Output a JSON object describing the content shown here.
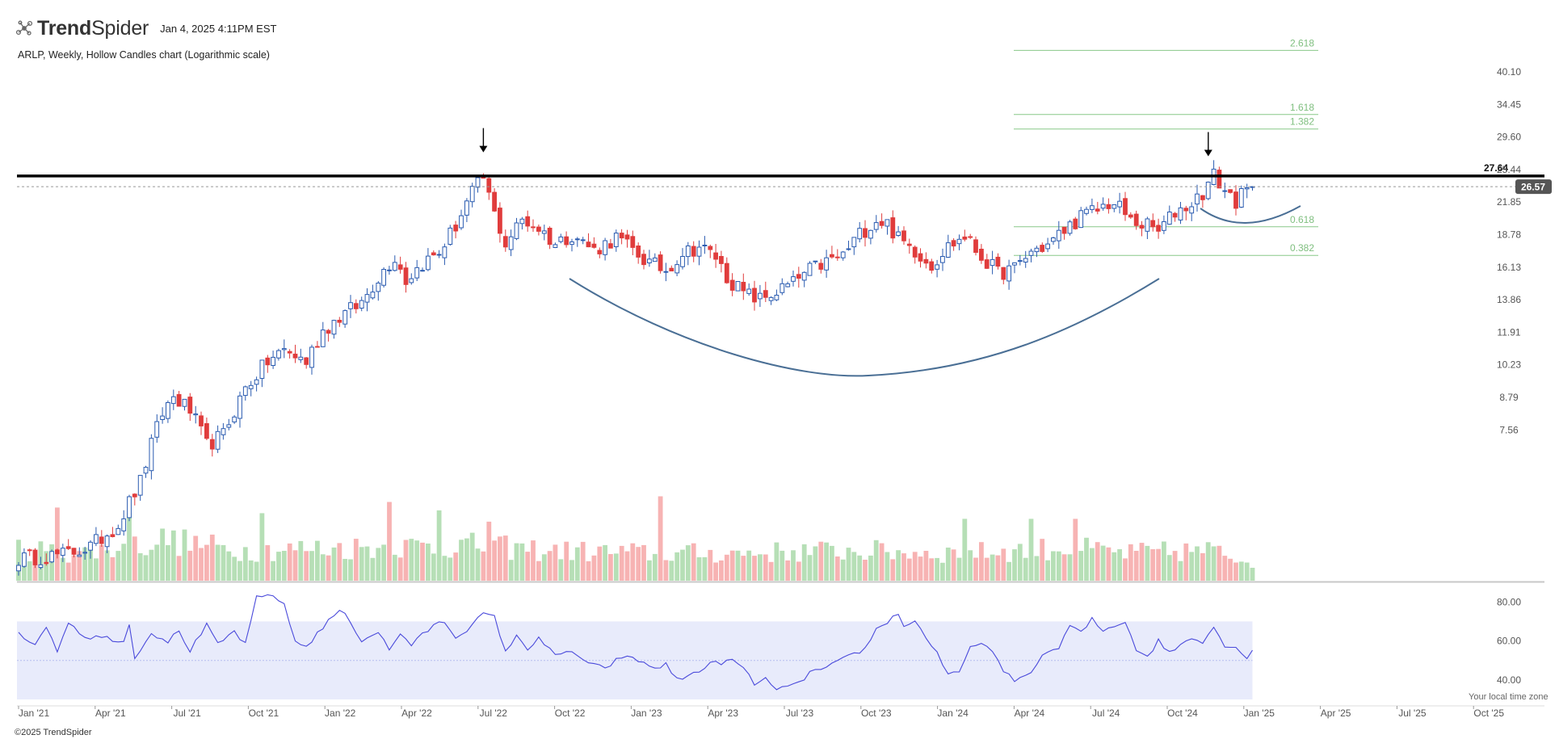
{
  "header": {
    "logo_bold": "Trend",
    "logo_regular": "Spider",
    "timestamp": "Jan 4, 2025 4:11PM EST",
    "logo_icon": "network-nodes-icon"
  },
  "footer": {
    "copyright": "©2025 TrendSpider",
    "timezone": "Your local time zone"
  },
  "colors": {
    "up": "#2a5bb0",
    "down": "#e03c3c",
    "vol_up": "#b6dfb6",
    "vol_down": "#f7b3b3",
    "rsi_line": "#4a4adb",
    "rsi_band": "#e8ebfb",
    "fib": "#88c888",
    "cup": "#4a6f95"
  },
  "chart_data": {
    "type": "candlestick",
    "title": "ARLP, Weekly, Hollow Candles chart (Logarithmic scale)",
    "scale": "log",
    "y_ticks": [
      "40.10",
      "34.45",
      "29.60",
      "25.44",
      "21.85",
      "18.78",
      "16.13",
      "13.86",
      "11.91",
      "10.23",
      "8.79",
      "7.56"
    ],
    "x_ticks": [
      "Jan '21",
      "Apr '21",
      "Jul '21",
      "Oct '21",
      "Jan '22",
      "Apr '22",
      "Jul '22",
      "Oct '22",
      "Jan '23",
      "Apr '23",
      "Jul '23",
      "Oct '23",
      "Jan '24",
      "Apr '24",
      "Jul '24",
      "Oct '24",
      "Jan '25",
      "Apr '25",
      "Jul '25",
      "Oct '25"
    ],
    "start_date": "2021-01-01",
    "resistance": {
      "value": 27.64,
      "label": "27.64"
    },
    "last_price": {
      "value": 26.57,
      "label": "26.57"
    },
    "fib_levels": [
      {
        "label": "2.618",
        "value": 44.0
      },
      {
        "label": "1.618",
        "value": 34.7
      },
      {
        "label": "1.382",
        "value": 32.9
      },
      {
        "label": "0.618",
        "value": 22.9
      },
      {
        "label": "0.382",
        "value": 20.6
      }
    ],
    "close_anchors": [
      [
        0,
        6.7
      ],
      [
        8,
        6.8
      ],
      [
        13,
        7.0
      ],
      [
        18,
        7.6
      ],
      [
        22,
        8.9
      ],
      [
        26,
        11.5
      ],
      [
        28,
        12.2
      ],
      [
        31,
        11.6
      ],
      [
        34,
        10.2
      ],
      [
        37,
        10.6
      ],
      [
        41,
        12.6
      ],
      [
        45,
        13.9
      ],
      [
        48,
        14.5
      ],
      [
        52,
        13.9
      ],
      [
        55,
        15.6
      ],
      [
        58,
        16.4
      ],
      [
        62,
        17.3
      ],
      [
        65,
        19.0
      ],
      [
        68,
        20.5
      ],
      [
        70,
        18.8
      ],
      [
        73,
        20.0
      ],
      [
        76,
        20.8
      ],
      [
        79,
        23.0
      ],
      [
        82,
        26.0
      ],
      [
        84,
        27.4
      ],
      [
        86,
        24.0
      ],
      [
        88,
        21.5
      ],
      [
        91,
        23.5
      ],
      [
        94,
        22.8
      ],
      [
        97,
        21.5
      ],
      [
        100,
        22.3
      ],
      [
        104,
        21.0
      ],
      [
        108,
        22.0
      ],
      [
        111,
        21.0
      ],
      [
        114,
        20.0
      ],
      [
        117,
        19.5
      ],
      [
        120,
        20.8
      ],
      [
        123,
        21.3
      ],
      [
        126,
        20.5
      ],
      [
        128,
        19.0
      ],
      [
        131,
        17.9
      ],
      [
        134,
        17.5
      ],
      [
        137,
        18.0
      ],
      [
        140,
        18.6
      ],
      [
        143,
        19.5
      ],
      [
        146,
        20.1
      ],
      [
        149,
        20.6
      ],
      [
        152,
        22.3
      ],
      [
        155,
        23.5
      ],
      [
        157,
        23.2
      ],
      [
        159,
        21.9
      ],
      [
        162,
        21.0
      ],
      [
        165,
        19.9
      ],
      [
        168,
        21.3
      ],
      [
        171,
        22.1
      ],
      [
        174,
        20.5
      ],
      [
        177,
        19.3
      ],
      [
        180,
        19.6
      ],
      [
        183,
        20.9
      ],
      [
        186,
        21.4
      ],
      [
        189,
        22.6
      ],
      [
        192,
        23.8
      ],
      [
        195,
        24.4
      ],
      [
        197,
        25.0
      ],
      [
        199,
        24.6
      ],
      [
        201,
        23.4
      ],
      [
        204,
        23.0
      ],
      [
        206,
        22.5
      ],
      [
        209,
        24.2
      ],
      [
        212,
        25.0
      ],
      [
        214,
        26.0
      ],
      [
        216,
        27.7
      ],
      [
        218,
        26.2
      ],
      [
        220,
        25.2
      ],
      [
        223,
        26.57
      ]
    ],
    "volume_axis_max": 3.0,
    "volume_anchors": [
      [
        0,
        1.2
      ],
      [
        8,
        1.0
      ],
      [
        20,
        1.2
      ],
      [
        26,
        1.5
      ],
      [
        40,
        1.1
      ],
      [
        60,
        1.2
      ],
      [
        80,
        1.3
      ],
      [
        95,
        1.1
      ],
      [
        115,
        1.0
      ],
      [
        130,
        1.0
      ],
      [
        150,
        1.1
      ],
      [
        170,
        1.0
      ],
      [
        190,
        1.2
      ],
      [
        200,
        1.0
      ],
      [
        215,
        1.1
      ],
      [
        223,
        0.7
      ]
    ],
    "volume_spikes": [
      [
        7,
        2.6
      ],
      [
        20,
        2.4
      ],
      [
        44,
        2.4
      ],
      [
        67,
        2.8
      ],
      [
        76,
        2.5
      ],
      [
        85,
        2.1
      ],
      [
        116,
        3.0
      ],
      [
        171,
        2.2
      ],
      [
        183,
        2.2
      ],
      [
        191,
        2.2
      ]
    ],
    "rsi_axis": {
      "ticks": [
        "80.00",
        "60.00",
        "40.00"
      ],
      "ylim": [
        30,
        88
      ],
      "overbought": 70,
      "oversold": 30,
      "mid": 50
    },
    "rsi_anchors": [
      [
        0,
        65
      ],
      [
        3,
        57
      ],
      [
        5,
        68
      ],
      [
        7,
        55
      ],
      [
        9,
        70
      ],
      [
        12,
        62
      ],
      [
        15,
        62
      ],
      [
        19,
        60
      ],
      [
        20,
        68
      ],
      [
        21,
        52
      ],
      [
        24,
        64
      ],
      [
        27,
        60
      ],
      [
        29,
        65
      ],
      [
        31,
        55
      ],
      [
        34,
        68
      ],
      [
        36,
        58
      ],
      [
        39,
        65
      ],
      [
        41,
        58
      ],
      [
        43,
        82
      ],
      [
        46,
        84
      ],
      [
        48,
        78
      ],
      [
        50,
        60
      ],
      [
        52,
        57
      ],
      [
        54,
        64
      ],
      [
        58,
        76
      ],
      [
        60,
        70
      ],
      [
        62,
        60
      ],
      [
        65,
        65
      ],
      [
        67,
        55
      ],
      [
        69,
        64
      ],
      [
        71,
        58
      ],
      [
        75,
        68
      ],
      [
        77,
        70
      ],
      [
        79,
        62
      ],
      [
        82,
        68
      ],
      [
        84,
        74
      ],
      [
        86,
        72
      ],
      [
        88,
        55
      ],
      [
        90,
        62
      ],
      [
        92,
        56
      ],
      [
        94,
        62
      ],
      [
        97,
        52
      ],
      [
        100,
        55
      ],
      [
        103,
        48
      ],
      [
        106,
        46
      ],
      [
        109,
        52
      ],
      [
        112,
        50
      ],
      [
        115,
        46
      ],
      [
        117,
        48
      ],
      [
        119,
        40
      ],
      [
        121,
        42
      ],
      [
        125,
        48
      ],
      [
        129,
        50
      ],
      [
        131,
        46
      ],
      [
        133,
        38
      ],
      [
        135,
        40
      ],
      [
        137,
        36
      ],
      [
        139,
        36
      ],
      [
        141,
        38
      ],
      [
        143,
        44
      ],
      [
        146,
        46
      ],
      [
        150,
        52
      ],
      [
        153,
        56
      ],
      [
        155,
        66
      ],
      [
        157,
        70
      ],
      [
        159,
        74
      ],
      [
        160,
        68
      ],
      [
        162,
        70
      ],
      [
        164,
        62
      ],
      [
        166,
        54
      ],
      [
        168,
        42
      ],
      [
        170,
        44
      ],
      [
        172,
        56
      ],
      [
        174,
        60
      ],
      [
        176,
        54
      ],
      [
        178,
        44
      ],
      [
        180,
        40
      ],
      [
        182,
        42
      ],
      [
        184,
        48
      ],
      [
        186,
        55
      ],
      [
        188,
        56
      ],
      [
        190,
        68
      ],
      [
        192,
        64
      ],
      [
        194,
        71
      ],
      [
        196,
        65
      ],
      [
        198,
        68
      ],
      [
        200,
        70
      ],
      [
        202,
        56
      ],
      [
        204,
        52
      ],
      [
        206,
        60
      ],
      [
        208,
        54
      ],
      [
        210,
        58
      ],
      [
        212,
        62
      ],
      [
        214,
        60
      ],
      [
        216,
        67
      ],
      [
        218,
        58
      ],
      [
        220,
        56
      ],
      [
        222,
        52
      ],
      [
        223,
        56
      ]
    ],
    "marker_arrows": [
      84,
      215
    ]
  }
}
